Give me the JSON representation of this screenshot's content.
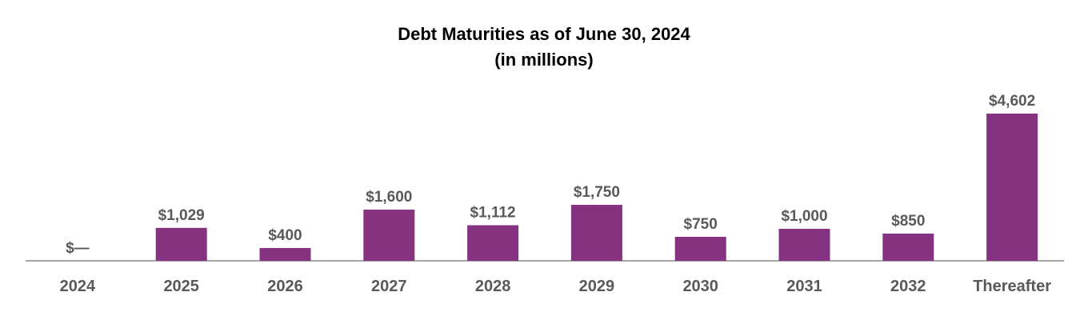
{
  "chart_data": {
    "type": "bar",
    "title": "Debt Maturities as of June 30, 2024",
    "subtitle": "(in millions)",
    "categories": [
      "2024",
      "2025",
      "2026",
      "2027",
      "2028",
      "2029",
      "2030",
      "2031",
      "2032",
      "Thereafter"
    ],
    "values": [
      0,
      1029,
      400,
      1600,
      1112,
      1750,
      750,
      1000,
      850,
      4602
    ],
    "data_labels": [
      "$—",
      "$1,029",
      "$400",
      "$1,600",
      "$1,112",
      "$1,750",
      "$750",
      "$1,000",
      "$850",
      "$4,602"
    ],
    "ylim": [
      0,
      4602
    ],
    "grid": false,
    "legend": "none",
    "bar_color": "#853380",
    "axis_color": "#a6a6a6",
    "label_color": "#595959"
  }
}
